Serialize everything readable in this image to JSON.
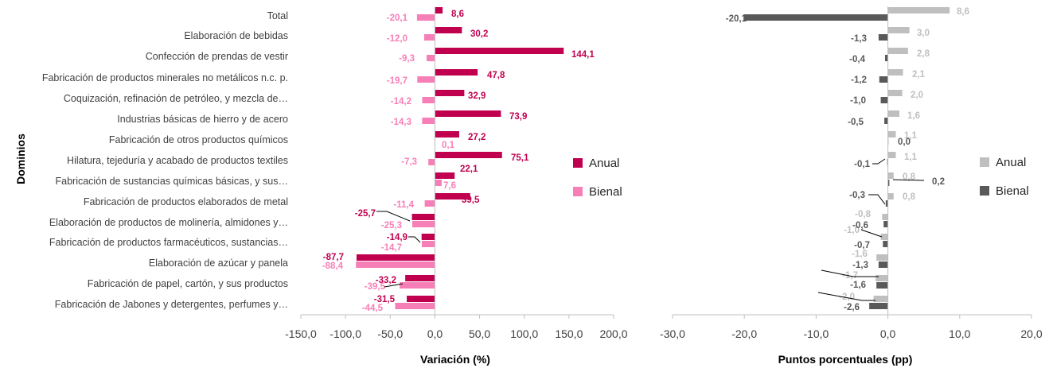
{
  "chart_data": [
    {
      "type": "bar",
      "orientation": "horizontal",
      "ylabel": "Dominios",
      "xlabel": "Variación (%)",
      "xlim": [
        -150,
        200
      ],
      "xticks": [
        -150,
        -100,
        -50,
        0,
        50,
        100,
        150,
        200
      ],
      "tick_labels": [
        "-150,0",
        "-100,0",
        "-50,0",
        "0,0",
        "50,0",
        "100,0",
        "150,0",
        "200,0"
      ],
      "grid": false,
      "legend_position": "right",
      "categories": [
        "Total",
        "Elaboración de bebidas",
        "Confección de prendas de vestir",
        "Fabricación de productos minerales no metálicos n.c. p.",
        "Coquización, refinación de petróleo, y mezcla de…",
        "Industrias básicas de hierro y de acero",
        "Fabricación de otros productos químicos",
        "Hilatura, tejeduría y acabado de productos textiles",
        "Fabricación de sustancias químicas básicas, y sus…",
        "Fabricación de productos elaborados de metal",
        "Elaboración de productos de molinería, almidones y…",
        "Fabricación de productos farmacéuticos, sustancias…",
        "Elaboración de azúcar y panela",
        "Fabricación de papel, cartón, y sus productos",
        "Fabricación de Jabones y detergentes, perfumes y…"
      ],
      "series": [
        {
          "name": "Anual",
          "color": "#C0004F",
          "values": [
            8.6,
            30.2,
            144.1,
            47.8,
            32.9,
            73.9,
            27.2,
            75.1,
            22.1,
            39.5,
            -25.7,
            -14.9,
            -87.7,
            -33.2,
            -31.5
          ],
          "labels": [
            "8,6",
            "30,2",
            "144,1",
            "47,8",
            "32,9",
            "73,9",
            "27,2",
            "75,1",
            "22,1",
            "39,5",
            "-25,7",
            "-14,9",
            "-87,7",
            "-33,2",
            "-31,5"
          ]
        },
        {
          "name": "Bienal",
          "color": "#F77FB7",
          "values": [
            -20.1,
            -12.0,
            -9.3,
            -19.7,
            -14.2,
            -14.3,
            0.1,
            -7.3,
            7.6,
            -11.4,
            -25.3,
            -14.7,
            -88.4,
            -39.5,
            -44.5
          ],
          "labels": [
            "-20,1",
            "-12,0",
            "-9,3",
            "-19,7",
            "-14,2",
            "-14,3",
            "0,1",
            "-7,3",
            "7,6",
            "-11,4",
            "-25,3",
            "-14,7",
            "-88,4",
            "-39,5",
            "-44,5"
          ]
        }
      ]
    },
    {
      "type": "bar",
      "orientation": "horizontal",
      "xlabel": "Puntos porcentuales (pp)",
      "xlim": [
        -30,
        20
      ],
      "xticks": [
        -30,
        -20,
        -10,
        0,
        10,
        20
      ],
      "tick_labels": [
        "-30,0",
        "-20,0",
        "-10,0",
        "0,0",
        "10,0",
        "20,0"
      ],
      "grid": false,
      "legend_position": "right",
      "series": [
        {
          "name": "Anual",
          "color": "#BFBFBF",
          "values": [
            8.6,
            3.0,
            2.8,
            2.1,
            2.0,
            1.6,
            1.1,
            1.1,
            0.8,
            0.8,
            -0.8,
            -1.0,
            -1.6,
            -1.7,
            -2.0
          ],
          "labels": [
            "8,6",
            "3,0",
            "2,8",
            "2,1",
            "2,0",
            "1,6",
            "1,1",
            "1,1",
            "0,8",
            "0,8",
            "-0,8",
            "-1,0",
            "-1,6",
            "-1,7",
            "-2,0"
          ]
        },
        {
          "name": "Bienal",
          "color": "#595959",
          "values": [
            -20.1,
            -1.3,
            -0.4,
            -1.2,
            -1.0,
            -0.5,
            0.0,
            -0.1,
            0.2,
            -0.3,
            -0.6,
            -0.7,
            -1.3,
            -1.6,
            -2.6
          ],
          "labels": [
            "-20,1",
            "-1,3",
            "-0,4",
            "-1,2",
            "-1,0",
            "-0,5",
            "0,0",
            "-0,1",
            "0,2",
            "-0,3",
            "-0,6",
            "-0,7",
            "-1,3",
            "-1,6",
            "-2,6"
          ]
        }
      ]
    }
  ]
}
